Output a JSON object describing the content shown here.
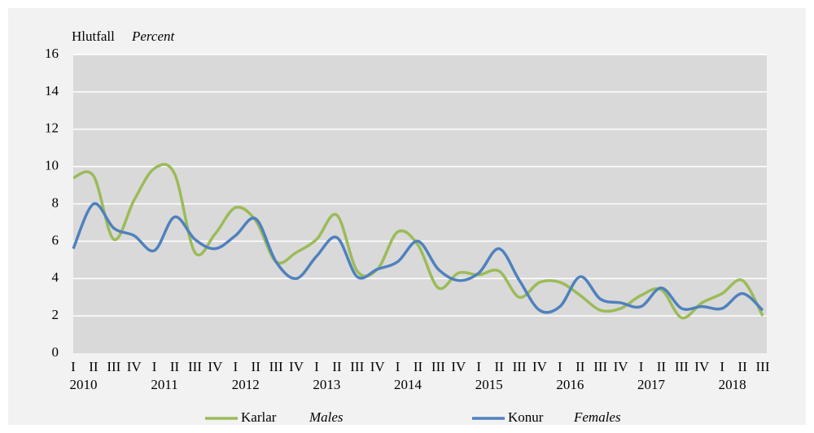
{
  "chart_data": {
    "type": "line",
    "y_label": "Hlutfall",
    "y_label_en": "Percent",
    "categories": [
      "I",
      "II",
      "III",
      "IV",
      "I",
      "II",
      "III",
      "IV",
      "I",
      "II",
      "III",
      "IV",
      "I",
      "II",
      "III",
      "IV",
      "I",
      "II",
      "III",
      "IV",
      "I",
      "II",
      "III",
      "IV",
      "I",
      "II",
      "III",
      "IV",
      "I",
      "II",
      "III",
      "IV",
      "I",
      "II",
      "III"
    ],
    "years": [
      "2010",
      "2011",
      "2012",
      "2013",
      "2014",
      "2015",
      "2016",
      "2017",
      "2018"
    ],
    "series": [
      {
        "name": "Karlar",
        "name_en": "Males",
        "color": "#9bbb59",
        "values": [
          9.4,
          9.5,
          6.1,
          8.2,
          9.9,
          9.6,
          5.4,
          6.4,
          7.8,
          7.1,
          4.9,
          5.4,
          6.1,
          7.4,
          4.4,
          4.5,
          6.5,
          5.8,
          3.5,
          4.3,
          4.2,
          4.4,
          3.0,
          3.8,
          3.8,
          3.1,
          2.3,
          2.4,
          3.1,
          3.4,
          1.9,
          2.7,
          3.2,
          3.9,
          2.0
        ]
      },
      {
        "name": "Konur",
        "name_en": "Females",
        "color": "#4f81bd",
        "values": [
          5.6,
          8.0,
          6.7,
          6.3,
          5.5,
          7.3,
          6.1,
          5.6,
          6.3,
          7.2,
          4.9,
          4.0,
          5.2,
          6.2,
          4.1,
          4.5,
          4.9,
          6.0,
          4.5,
          3.9,
          4.3,
          5.6,
          3.9,
          2.3,
          2.5,
          4.1,
          2.9,
          2.7,
          2.5,
          3.5,
          2.4,
          2.5,
          2.4,
          3.2,
          2.3
        ]
      }
    ],
    "ylim": [
      0,
      16
    ],
    "yticks": [
      0,
      2,
      4,
      6,
      8,
      10,
      12,
      14,
      16
    ],
    "grid": true,
    "smooth": true
  }
}
